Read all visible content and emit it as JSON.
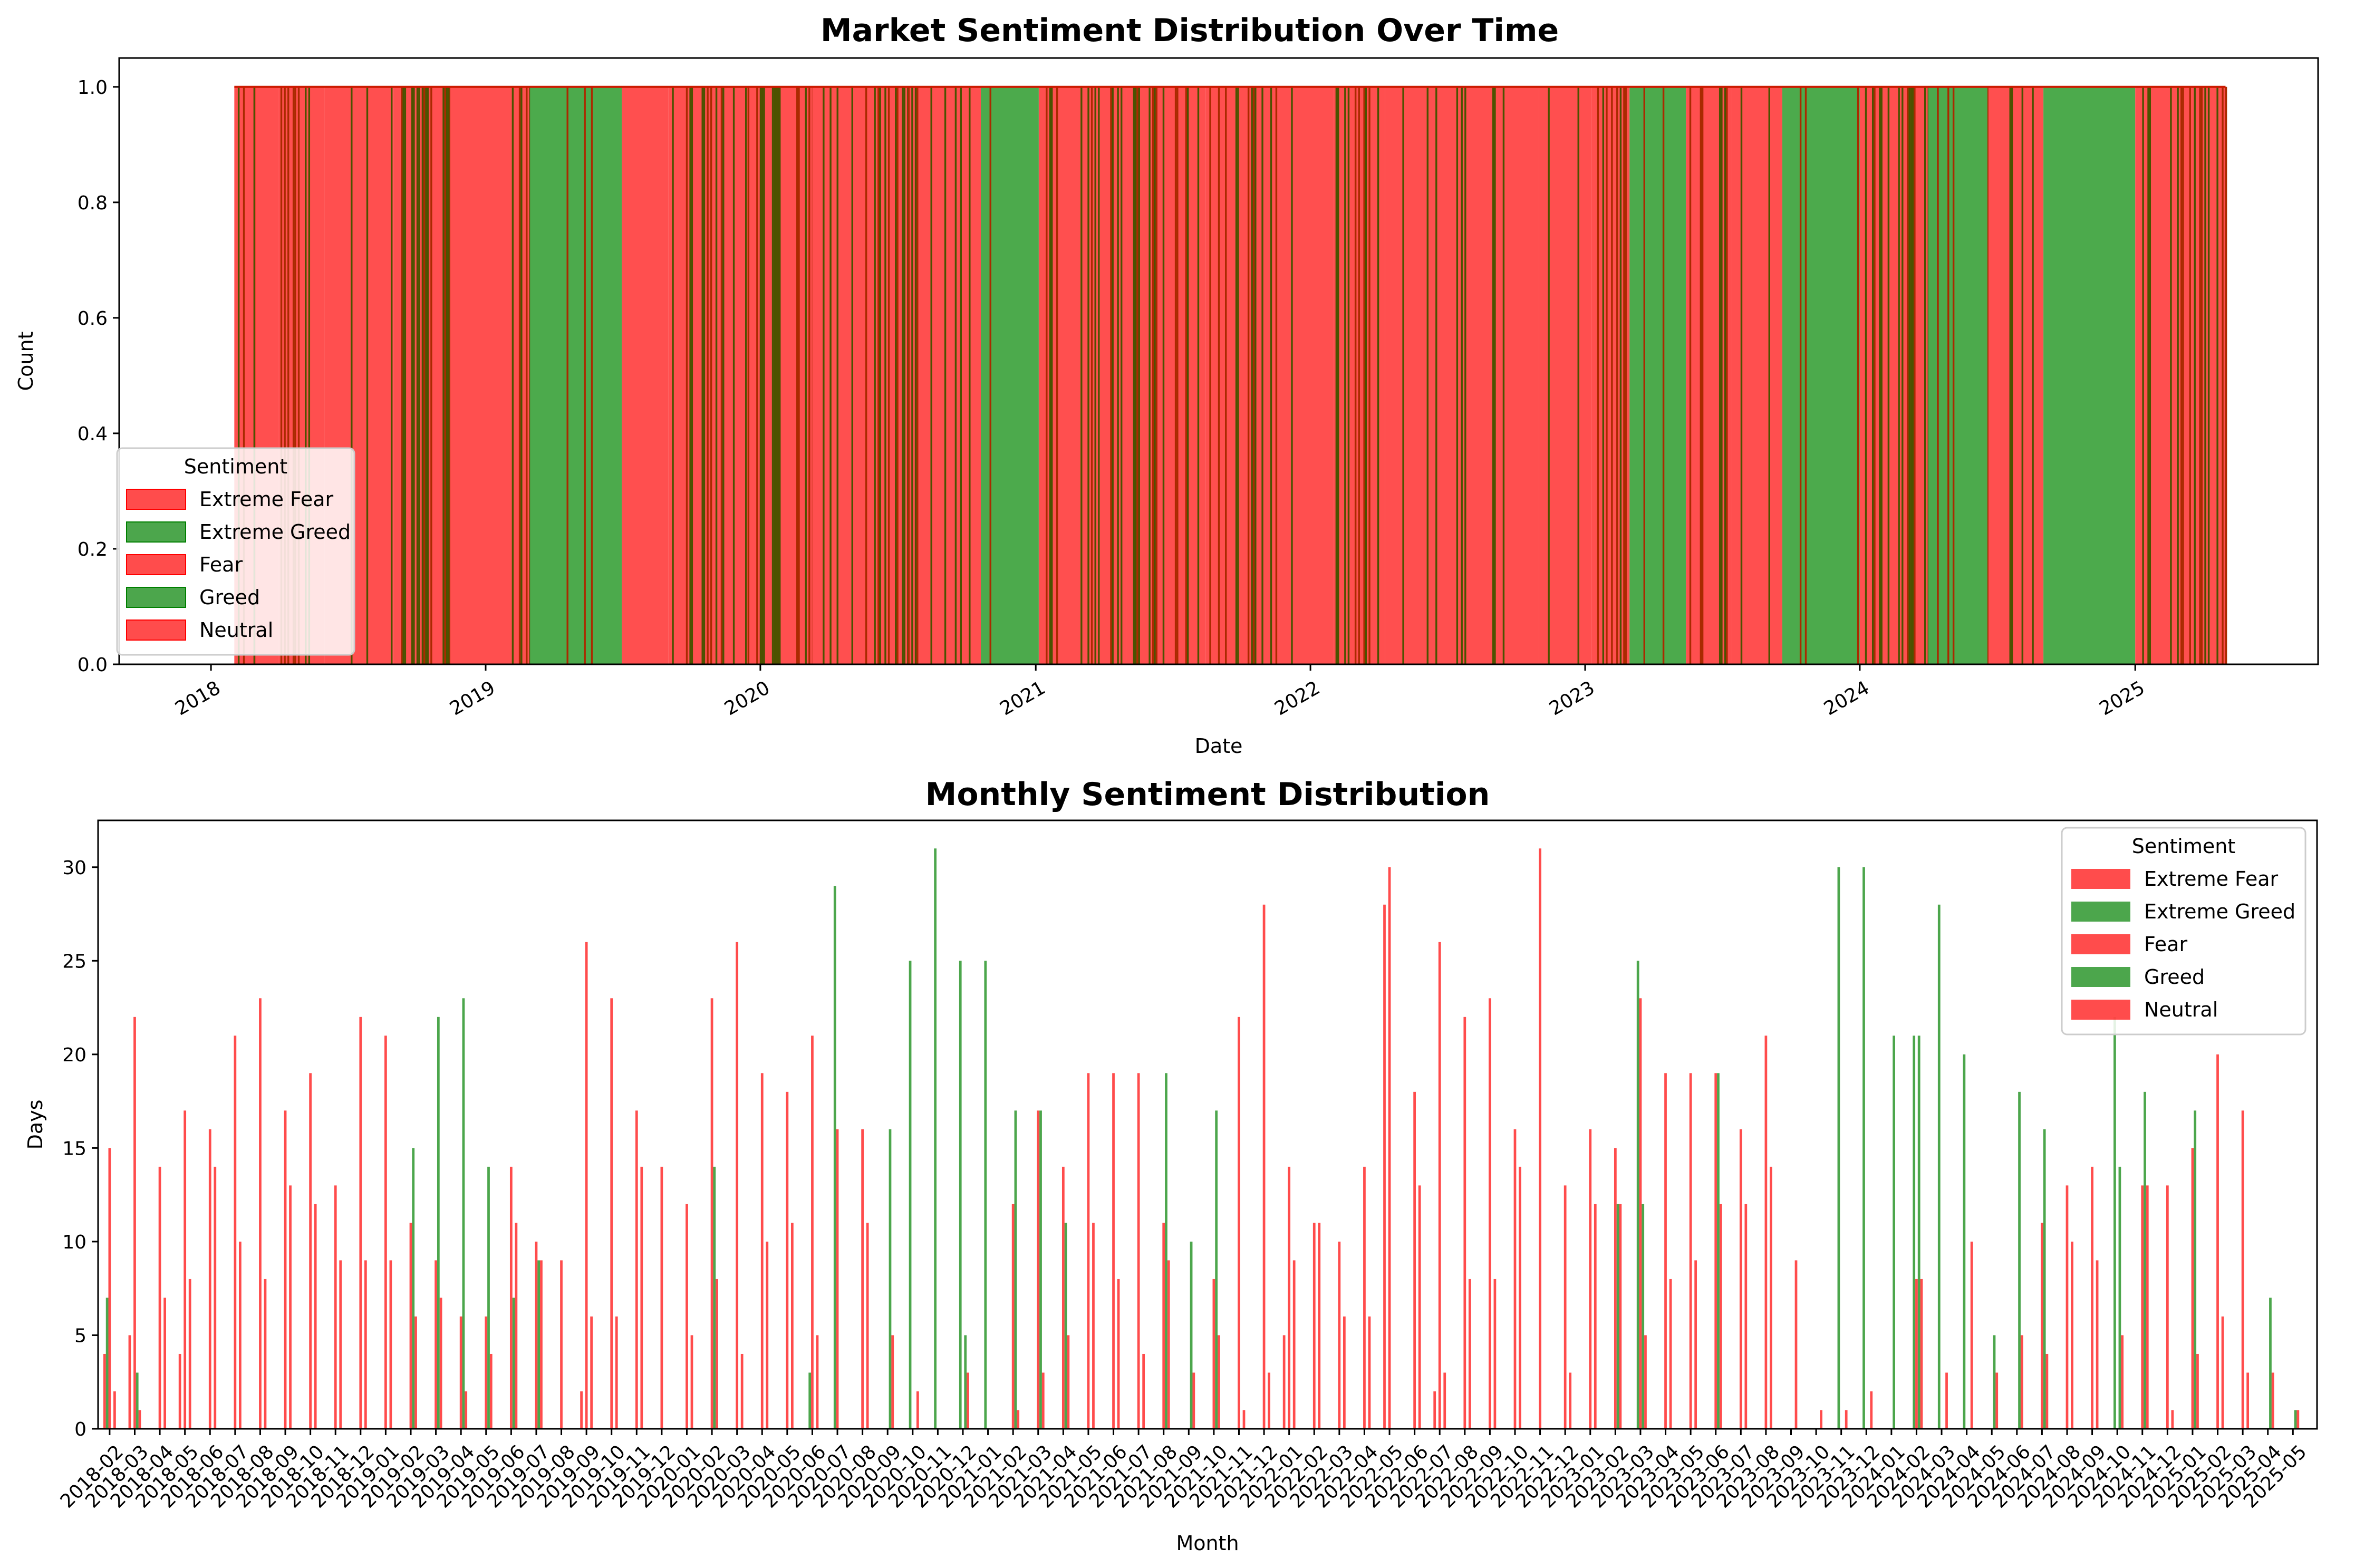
{
  "chart_data": [
    {
      "type": "bar",
      "title": "Market Sentiment Distribution Over Time",
      "xlabel": "Date",
      "ylabel": "Count",
      "ylim": [
        0.0,
        1.05
      ],
      "xlim": [
        "2017-09-01",
        "2025-09-01"
      ],
      "yticks": [
        "0.0",
        "0.2",
        "0.4",
        "0.6",
        "0.8",
        "1.0"
      ],
      "xticks": [
        "2018",
        "2019",
        "2020",
        "2021",
        "2022",
        "2023",
        "2024",
        "2025"
      ],
      "legend_title": "Sentiment",
      "legend_position": "lower-left",
      "series": [
        {
          "name": "Extreme Fear",
          "color": "#ff0000"
        },
        {
          "name": "Extreme Greed",
          "color": "#008000"
        },
        {
          "name": "Fear",
          "color": "#ff0000"
        },
        {
          "name": "Greed",
          "color": "#008000"
        },
        {
          "name": "Neutral",
          "color": "#ff0000"
        }
      ],
      "runs": [
        [
          "2018-02-01",
          "2018-03-01",
          "mix"
        ],
        [
          "2018-03-01",
          "2018-04-01",
          "red"
        ],
        [
          "2018-04-01",
          "2018-06-01",
          "mix"
        ],
        [
          "2018-06-01",
          "2018-09-01",
          "red"
        ],
        [
          "2018-09-01",
          "2018-11-15",
          "mix"
        ],
        [
          "2018-11-15",
          "2019-01-15",
          "red"
        ],
        [
          "2019-01-15",
          "2019-03-01",
          "mix"
        ],
        [
          "2019-03-01",
          "2019-07-01",
          "green"
        ],
        [
          "2019-07-01",
          "2019-09-01",
          "red"
        ],
        [
          "2019-09-01",
          "2019-12-15",
          "mix"
        ],
        [
          "2019-12-15",
          "2020-03-10",
          "mix"
        ],
        [
          "2020-03-10",
          "2020-05-01",
          "red"
        ],
        [
          "2020-05-01",
          "2020-07-15",
          "mix"
        ],
        [
          "2020-07-15",
          "2020-10-20",
          "mix"
        ],
        [
          "2020-10-20",
          "2021-01-05",
          "green"
        ],
        [
          "2021-01-05",
          "2021-05-01",
          "mix"
        ],
        [
          "2021-05-01",
          "2021-08-15",
          "mix"
        ],
        [
          "2021-08-15",
          "2021-11-20",
          "mix"
        ],
        [
          "2021-11-20",
          "2022-02-01",
          "red"
        ],
        [
          "2022-02-01",
          "2022-04-10",
          "mix"
        ],
        [
          "2022-04-10",
          "2022-07-20",
          "red"
        ],
        [
          "2022-07-20",
          "2022-11-01",
          "red"
        ],
        [
          "2022-11-01",
          "2023-01-10",
          "red"
        ],
        [
          "2023-01-10",
          "2023-03-01",
          "mix"
        ],
        [
          "2023-03-01",
          "2023-05-15",
          "green"
        ],
        [
          "2023-05-15",
          "2023-07-15",
          "mix"
        ],
        [
          "2023-07-15",
          "2023-09-20",
          "red"
        ],
        [
          "2023-09-20",
          "2024-01-01",
          "green"
        ],
        [
          "2024-01-01",
          "2024-04-01",
          "mix"
        ],
        [
          "2024-04-01",
          "2024-06-20",
          "green"
        ],
        [
          "2024-06-20",
          "2024-09-01",
          "red"
        ],
        [
          "2024-09-01",
          "2025-01-01",
          "green"
        ],
        [
          "2025-01-01",
          "2025-03-20",
          "mix"
        ],
        [
          "2025-03-20",
          "2025-05-01",
          "mix"
        ]
      ]
    },
    {
      "type": "bar",
      "title": "Monthly Sentiment Distribution",
      "xlabel": "Month",
      "ylabel": "Days",
      "ylim": [
        0,
        32.5
      ],
      "yticks": [
        "0",
        "5",
        "10",
        "15",
        "20",
        "25",
        "30"
      ],
      "legend_title": "Sentiment",
      "legend_position": "top-right",
      "categories": [
        "2018-02",
        "2018-03",
        "2018-04",
        "2018-05",
        "2018-06",
        "2018-07",
        "2018-08",
        "2018-09",
        "2018-10",
        "2018-11",
        "2018-12",
        "2019-01",
        "2019-02",
        "2019-03",
        "2019-04",
        "2019-05",
        "2019-06",
        "2019-07",
        "2019-08",
        "2019-09",
        "2019-10",
        "2019-11",
        "2019-12",
        "2020-01",
        "2020-02",
        "2020-03",
        "2020-04",
        "2020-05",
        "2020-06",
        "2020-07",
        "2020-08",
        "2020-09",
        "2020-10",
        "2020-11",
        "2020-12",
        "2021-01",
        "2021-02",
        "2021-03",
        "2021-04",
        "2021-05",
        "2021-06",
        "2021-07",
        "2021-08",
        "2021-09",
        "2021-10",
        "2021-11",
        "2021-12",
        "2022-01",
        "2022-02",
        "2022-03",
        "2022-04",
        "2022-05",
        "2022-06",
        "2022-07",
        "2022-08",
        "2022-09",
        "2022-10",
        "2022-11",
        "2022-12",
        "2023-01",
        "2023-02",
        "2023-03",
        "2023-04",
        "2023-05",
        "2023-06",
        "2023-07",
        "2023-08",
        "2023-09",
        "2023-10",
        "2023-11",
        "2023-12",
        "2024-01",
        "2024-02",
        "2024-03",
        "2024-04",
        "2024-05",
        "2024-06",
        "2024-07",
        "2024-08",
        "2024-09",
        "2024-10",
        "2024-11",
        "2024-12",
        "2025-01",
        "2025-02",
        "2025-03",
        "2025-04",
        "2025-05"
      ],
      "series": [
        {
          "name": "Extreme Fear",
          "color": "#ff0000",
          "values": [
            4,
            5,
            0,
            4,
            0,
            0,
            0,
            0,
            0,
            0,
            0,
            0,
            0,
            0,
            0,
            0,
            0,
            0,
            0,
            2,
            0,
            0,
            0,
            0,
            0,
            0,
            0,
            0,
            0,
            0,
            0,
            0,
            0,
            0,
            0,
            0,
            0,
            0,
            0,
            0,
            0,
            0,
            0,
            0,
            0,
            0,
            0,
            5,
            0,
            0,
            0,
            28,
            0,
            2,
            0,
            0,
            0,
            0,
            0,
            0,
            0,
            0,
            0,
            0,
            0,
            0,
            0,
            0,
            0,
            0,
            0,
            0,
            0,
            0,
            0,
            0,
            0,
            0,
            0,
            0,
            0,
            0,
            0,
            0,
            0,
            0,
            0,
            0
          ]
        },
        {
          "name": "Extreme Greed",
          "color": "#008000",
          "values": [
            7,
            0,
            0,
            0,
            0,
            0,
            0,
            0,
            0,
            0,
            0,
            0,
            0,
            0,
            0,
            0,
            0,
            0,
            0,
            0,
            0,
            0,
            0,
            0,
            0,
            0,
            0,
            0,
            3,
            29,
            0,
            0,
            25,
            31,
            25,
            25,
            0,
            0,
            0,
            0,
            0,
            0,
            0,
            0,
            0,
            0,
            0,
            0,
            0,
            0,
            0,
            0,
            0,
            0,
            0,
            0,
            0,
            0,
            0,
            0,
            0,
            25,
            0,
            0,
            0,
            0,
            0,
            0,
            0,
            30,
            30,
            0,
            21,
            28,
            20,
            0,
            0,
            0,
            0,
            0,
            22,
            0,
            0,
            0,
            0,
            0,
            0,
            0
          ]
        },
        {
          "name": "Fear",
          "color": "#ff0000",
          "values": [
            15,
            22,
            14,
            17,
            16,
            21,
            23,
            17,
            19,
            13,
            22,
            21,
            11,
            9,
            6,
            6,
            14,
            10,
            9,
            26,
            23,
            17,
            14,
            12,
            23,
            26,
            19,
            18,
            21,
            16,
            16,
            0,
            0,
            0,
            0,
            0,
            12,
            17,
            14,
            19,
            19,
            19,
            11,
            0,
            8,
            22,
            28,
            14,
            11,
            10,
            14,
            30,
            18,
            26,
            22,
            23,
            16,
            31,
            13,
            16,
            15,
            23,
            19,
            19,
            19,
            16,
            21,
            0,
            0,
            0,
            0,
            0,
            8,
            0,
            0,
            0,
            0,
            11,
            13,
            14,
            0,
            13,
            13,
            15,
            20,
            17,
            0,
            0
          ]
        },
        {
          "name": "Greed",
          "color": "#008000",
          "values": [
            0,
            3,
            0,
            0,
            0,
            0,
            0,
            0,
            0,
            0,
            0,
            0,
            15,
            22,
            23,
            14,
            7,
            9,
            0,
            0,
            0,
            0,
            0,
            0,
            14,
            0,
            0,
            0,
            0,
            0,
            0,
            16,
            0,
            0,
            5,
            0,
            17,
            17,
            11,
            0,
            0,
            0,
            19,
            10,
            17,
            0,
            0,
            0,
            0,
            0,
            0,
            0,
            0,
            0,
            0,
            0,
            0,
            0,
            0,
            0,
            12,
            12,
            0,
            0,
            19,
            0,
            0,
            0,
            0,
            0,
            0,
            21,
            21,
            0,
            0,
            5,
            18,
            16,
            0,
            0,
            14,
            18,
            0,
            17,
            0,
            0,
            7,
            1
          ]
        },
        {
          "name": "Neutral",
          "color": "#ff0000",
          "values": [
            2,
            1,
            7,
            8,
            14,
            10,
            8,
            13,
            12,
            9,
            9,
            9,
            6,
            7,
            2,
            4,
            11,
            9,
            0,
            6,
            6,
            14,
            0,
            5,
            8,
            4,
            10,
            11,
            5,
            0,
            11,
            5,
            2,
            0,
            3,
            0,
            1,
            3,
            5,
            11,
            8,
            4,
            9,
            3,
            5,
            1,
            3,
            9,
            11,
            6,
            6,
            0,
            13,
            3,
            8,
            8,
            14,
            0,
            3,
            12,
            12,
            5,
            8,
            9,
            12,
            12,
            14,
            9,
            1,
            1,
            2,
            0,
            8,
            3,
            10,
            3,
            5,
            4,
            10,
            9,
            5,
            13,
            1,
            4,
            6,
            3,
            3,
            1
          ]
        }
      ]
    }
  ]
}
